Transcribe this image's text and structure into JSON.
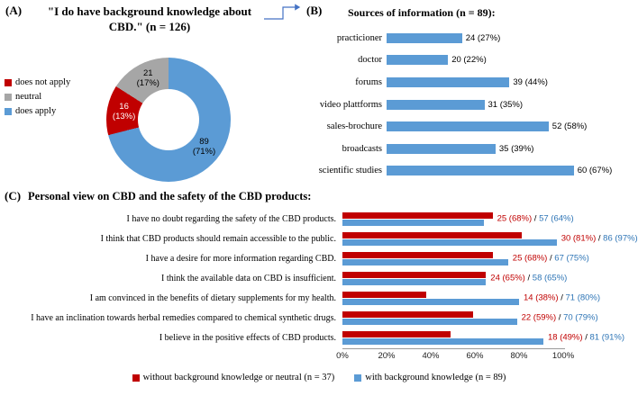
{
  "chart_data": [
    {
      "id": "background-knowledge-donut",
      "type": "pie",
      "donut": true,
      "panel_tag": "(A)",
      "title": "\"I do have background knowledge about CBD.\" (n = 126)",
      "title_lines": [
        "\"I do have background knowledge about",
        "CBD.\" (n = 126)"
      ],
      "n": 126,
      "legend_position": "left",
      "legend_items": [
        {
          "label": "does not apply",
          "color": "#c00000"
        },
        {
          "label": "neutral",
          "color": "#a6a6a6"
        },
        {
          "label": "does apply",
          "color": "#5b9bd5"
        }
      ],
      "slices": [
        {
          "label": "does apply",
          "value": 89,
          "pct": 71,
          "color": "#5b9bd5",
          "label_text": "89\n(71%)",
          "label_color": "#000000"
        },
        {
          "label": "does not apply",
          "value": 16,
          "pct": 13,
          "color": "#c00000",
          "label_text": "16\n(13%)",
          "label_color": "#ffffff"
        },
        {
          "label": "neutral",
          "value": 21,
          "pct": 17,
          "color": "#a6a6a6",
          "label_text": "21\n(17%)",
          "label_color": "#000000"
        }
      ]
    },
    {
      "id": "sources-of-information",
      "type": "bar",
      "orientation": "horizontal",
      "panel_tag": "(B)",
      "title": "Sources of information (n = 89):",
      "categories": [
        "practicioner",
        "doctor",
        "forums",
        "video plattforms",
        "sales-brochure",
        "broadcasts",
        "scientific studies"
      ],
      "values": [
        24,
        20,
        39,
        31,
        52,
        35,
        60
      ],
      "pcts": [
        27,
        22,
        44,
        35,
        58,
        39,
        67
      ],
      "labels": [
        "24 (27%)",
        "20 (22%)",
        "39 (44%)",
        "31 (35%)",
        "52 (58%)",
        "35 (39%)",
        "60 (67%)"
      ],
      "bar_color": "#5b9bd5",
      "xlim": [
        0,
        70
      ],
      "grid": false
    },
    {
      "id": "personal-view-grouped-bars",
      "type": "bar",
      "orientation": "horizontal",
      "panel_tag": "(C)",
      "title": "Personal view on CBD and the safety of the CBD products:",
      "categories": [
        "I have no doubt regarding the safety of the CBD products.",
        "I think that CBD products should remain accessible to the public.",
        "I have a desire for more information regarding CBD.",
        "I think the available data on CBD is insufficient.",
        "I am convinced in the benefits of dietary supplements for my health.",
        "I have an inclination towards herbal remedies compared to chemical synthetic drugs.",
        "I believe in the positive effects of CBD products."
      ],
      "series": [
        {
          "name": "without background knowledge or neutral (n = 37)",
          "color": "#c00000",
          "values": [
            25,
            30,
            25,
            24,
            14,
            22,
            18
          ],
          "pcts": [
            68,
            81,
            68,
            65,
            38,
            59,
            49
          ],
          "labels": [
            "25 (68%)",
            "30 (81%)",
            "25 (68%)",
            "24 (65%)",
            "14 (38%)",
            "22 (59%)",
            "18 (49%)"
          ]
        },
        {
          "name": "with background knowledge (n = 89)",
          "color": "#5b9bd5",
          "values": [
            57,
            86,
            67,
            58,
            71,
            70,
            81
          ],
          "pcts": [
            64,
            97,
            75,
            65,
            80,
            79,
            91
          ],
          "labels": [
            "57 (64%)",
            "86 (97%)",
            "67 (75%)",
            "58 (65%)",
            "71 (80%)",
            "70 (79%)",
            "81 (91%)"
          ]
        }
      ],
      "value_label_blue": "#2e75b6",
      "x_ticks": [
        "0%",
        "20%",
        "40%",
        "60%",
        "80%",
        "100%"
      ],
      "xlim": [
        0,
        100
      ],
      "grid": false,
      "legend_position": "bottom"
    }
  ],
  "connector": {
    "color": "#4472c4"
  }
}
